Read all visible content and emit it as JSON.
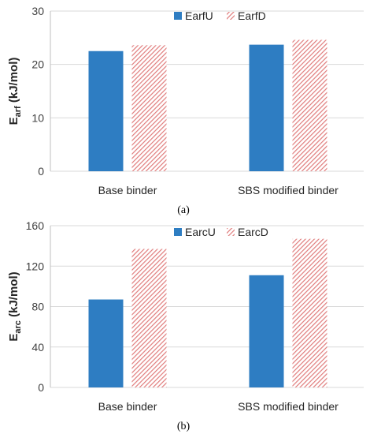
{
  "chart_data": [
    {
      "type": "bar",
      "categories": [
        "Base binder",
        "SBS modified binder"
      ],
      "series": [
        {
          "name": "EarfU",
          "values": [
            22.5,
            23.7
          ],
          "color": "#2e7dc2",
          "pattern": "solid"
        },
        {
          "name": "EarfD",
          "values": [
            23.6,
            24.6
          ],
          "color": "#e07b7b",
          "pattern": "diagonal-hatch"
        }
      ],
      "ylabel_main": "E",
      "ylabel_sub": "arf",
      "ylabel_unit": " (kJ/mol)",
      "ylim": [
        0,
        30
      ],
      "yticks": [
        0,
        10,
        20,
        30
      ],
      "grid": true,
      "legend_position": "top-center",
      "caption": "(a)"
    },
    {
      "type": "bar",
      "categories": [
        "Base binder",
        "SBS modified binder"
      ],
      "series": [
        {
          "name": "EarcU",
          "values": [
            87,
            111
          ],
          "color": "#2e7dc2",
          "pattern": "solid"
        },
        {
          "name": "EarcD",
          "values": [
            137,
            147
          ],
          "color": "#e07b7b",
          "pattern": "diagonal-hatch"
        }
      ],
      "ylabel_main": "E",
      "ylabel_sub": "arc",
      "ylabel_unit": " (kJ/mol)",
      "ylim": [
        0,
        160
      ],
      "yticks": [
        0,
        40,
        80,
        120,
        160
      ],
      "grid": true,
      "legend_position": "top-center",
      "caption": "(b)"
    }
  ]
}
